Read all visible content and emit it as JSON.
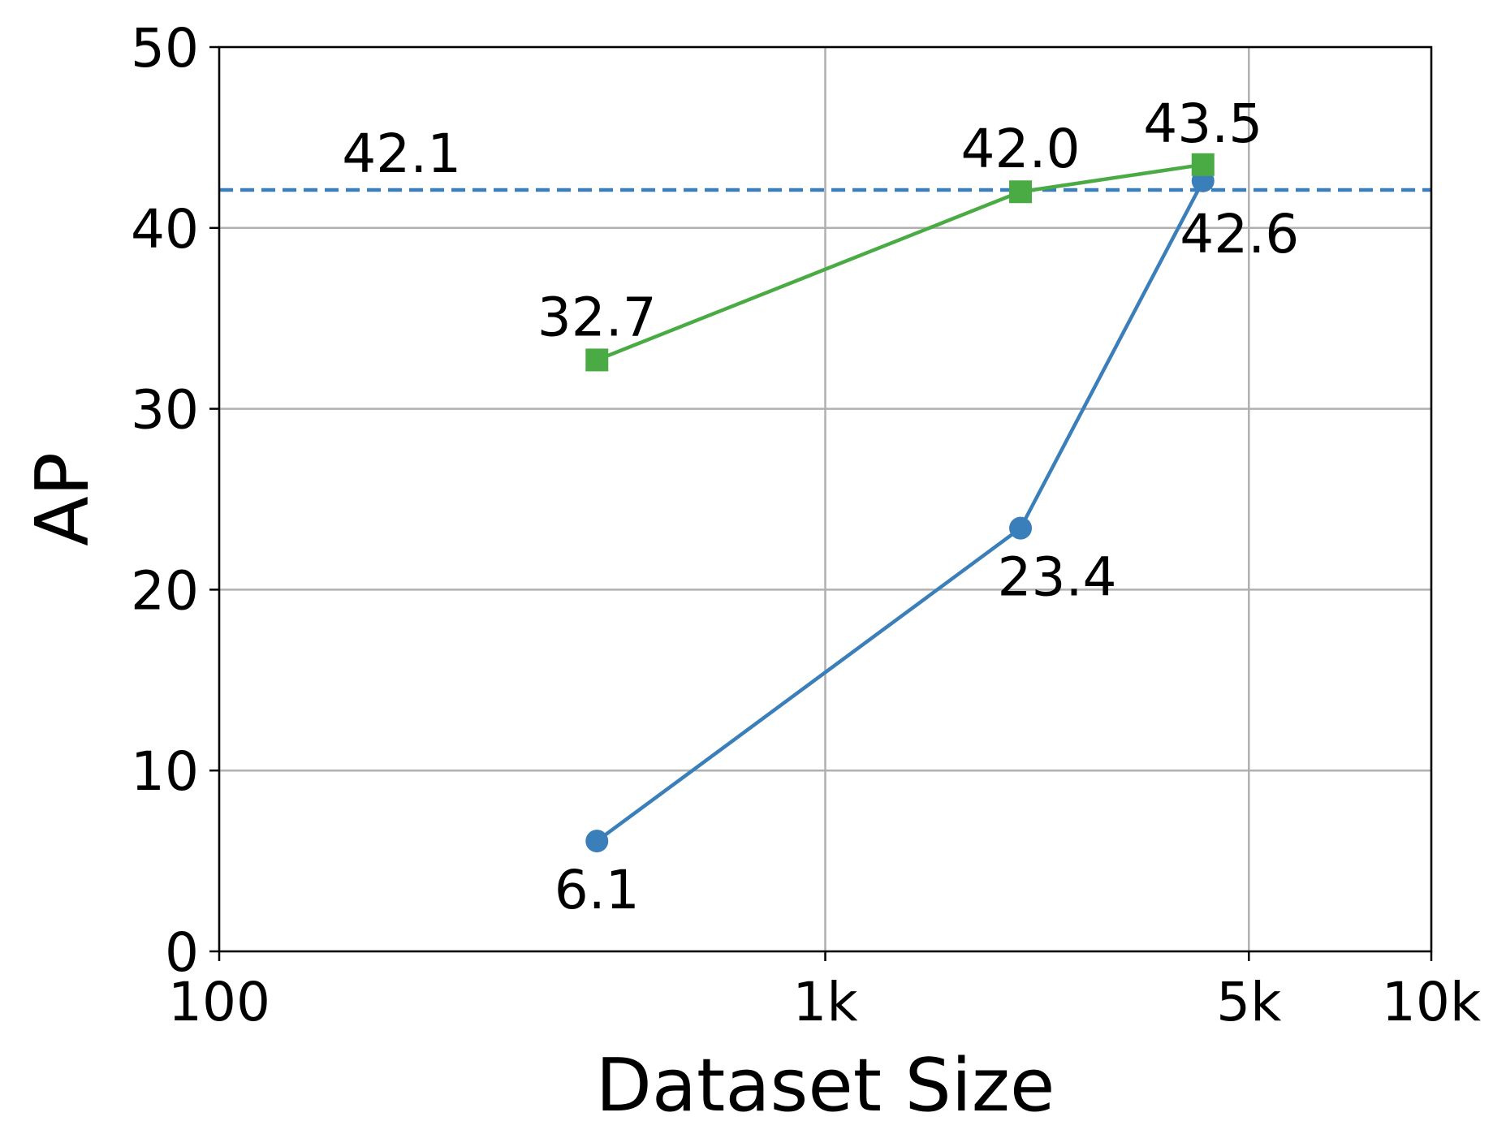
{
  "chart_data": {
    "type": "line",
    "xlabel": "Dataset Size",
    "ylabel": "AP",
    "xscale": "log",
    "xlim": [
      100,
      10000
    ],
    "ylim": [
      0,
      50
    ],
    "grid": true,
    "x_ticks": [
      {
        "value": 100,
        "label": "100"
      },
      {
        "value": 1000,
        "label": "1k"
      },
      {
        "value": 5000,
        "label": "5k"
      },
      {
        "value": 10000,
        "label": "10k"
      }
    ],
    "y_ticks": [
      {
        "value": 0,
        "label": "0"
      },
      {
        "value": 10,
        "label": "10"
      },
      {
        "value": 20,
        "label": "20"
      },
      {
        "value": 30,
        "label": "30"
      },
      {
        "value": 40,
        "label": "40"
      },
      {
        "value": 50,
        "label": "50"
      }
    ],
    "series": [
      {
        "color": "#3a7fba",
        "marker": "circle",
        "x": [
          420,
          2100,
          4200
        ],
        "y": [
          6.1,
          23.4,
          42.6
        ],
        "labels": [
          "6.1",
          "23.4",
          "42.6"
        ],
        "label_position": [
          "below",
          "below",
          "below"
        ]
      },
      {
        "color": "#4aab45",
        "marker": "square",
        "x": [
          420,
          2100,
          4200
        ],
        "y": [
          32.7,
          42.0,
          43.5
        ],
        "labels": [
          "32.7",
          "42.0",
          "43.5"
        ],
        "label_position": [
          "above",
          "above",
          "above"
        ]
      }
    ],
    "reference_line": {
      "orientation": "horizontal",
      "y": 42.1,
      "style": "dashed",
      "color": "#3a7fba",
      "label": "42.1",
      "label_x": 200
    }
  }
}
